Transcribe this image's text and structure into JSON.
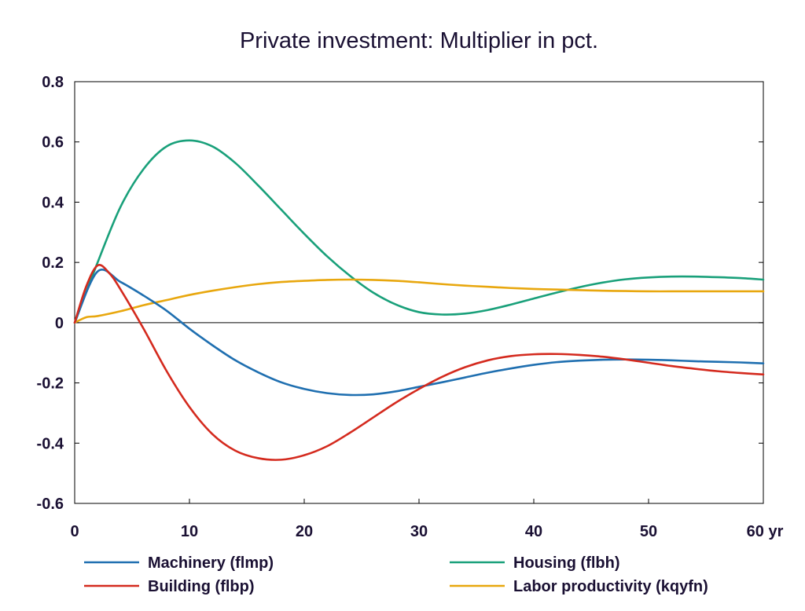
{
  "chart_data": {
    "type": "line",
    "title": "Private investment: Multiplier in pct.",
    "xlabel": "",
    "ylabel": "",
    "xlim": [
      0,
      60
    ],
    "ylim": [
      -0.6,
      0.8
    ],
    "x_ticks": [
      0,
      10,
      20,
      30,
      40,
      50,
      60
    ],
    "x_tick_labels": [
      "0",
      "10",
      "20",
      "30",
      "40",
      "50",
      "60 yr"
    ],
    "y_ticks": [
      -0.6,
      -0.4,
      -0.2,
      0,
      0.2,
      0.4,
      0.6,
      0.8
    ],
    "y_tick_labels": [
      "-0.6",
      "-0.4",
      "-0.2",
      "0",
      "0.2",
      "0.4",
      "0.6",
      "0.8"
    ],
    "grid": false,
    "zero_line": true,
    "legend_position": "bottom",
    "series": [
      {
        "name": "Machinery (flmp)",
        "color": "#1f6fb0",
        "x": [
          0,
          2,
          4,
          6,
          8,
          10,
          12,
          14,
          16,
          18,
          20,
          22,
          24,
          26,
          28,
          30,
          32,
          34,
          36,
          38,
          40,
          42,
          44,
          46,
          48,
          50,
          52,
          54,
          56,
          58,
          60
        ],
        "values": [
          0,
          0.17,
          0.135,
          0.09,
          0.04,
          -0.02,
          -0.075,
          -0.125,
          -0.165,
          -0.198,
          -0.22,
          -0.234,
          -0.24,
          -0.238,
          -0.228,
          -0.213,
          -0.198,
          -0.182,
          -0.166,
          -0.152,
          -0.14,
          -0.131,
          -0.126,
          -0.123,
          -0.122,
          -0.123,
          -0.125,
          -0.128,
          -0.13,
          -0.132,
          -0.135
        ]
      },
      {
        "name": "Housing (flbh)",
        "color": "#19a07a",
        "x": [
          0,
          2,
          4,
          6,
          8,
          10,
          12,
          14,
          16,
          18,
          20,
          22,
          24,
          26,
          28,
          30,
          32,
          34,
          36,
          38,
          40,
          42,
          44,
          46,
          48,
          50,
          52,
          54,
          56,
          58,
          60
        ],
        "values": [
          0,
          0.2,
          0.385,
          0.51,
          0.585,
          0.605,
          0.585,
          0.53,
          0.455,
          0.375,
          0.295,
          0.22,
          0.155,
          0.1,
          0.06,
          0.035,
          0.027,
          0.03,
          0.042,
          0.06,
          0.08,
          0.1,
          0.118,
          0.133,
          0.144,
          0.15,
          0.153,
          0.153,
          0.151,
          0.148,
          0.143
        ]
      },
      {
        "name": "Building (flbp)",
        "color": "#d42a1e",
        "x": [
          0,
          1,
          2,
          3,
          4,
          6,
          8,
          10,
          12,
          14,
          16,
          18,
          20,
          22,
          24,
          26,
          28,
          30,
          32,
          34,
          36,
          38,
          40,
          42,
          44,
          46,
          48,
          50,
          52,
          54,
          56,
          58,
          60
        ],
        "values": [
          0,
          0.12,
          0.19,
          0.165,
          0.11,
          -0.02,
          -0.16,
          -0.28,
          -0.37,
          -0.425,
          -0.45,
          -0.455,
          -0.44,
          -0.41,
          -0.365,
          -0.315,
          -0.265,
          -0.22,
          -0.18,
          -0.148,
          -0.125,
          -0.111,
          -0.105,
          -0.104,
          -0.107,
          -0.113,
          -0.122,
          -0.133,
          -0.144,
          -0.153,
          -0.161,
          -0.167,
          -0.172
        ]
      },
      {
        "name": "Labor productivity (kqyfn)",
        "color": "#e8a70e",
        "x": [
          0,
          1,
          2,
          4,
          6,
          8,
          10,
          12,
          14,
          16,
          18,
          20,
          22,
          24,
          26,
          28,
          30,
          32,
          34,
          36,
          38,
          40,
          42,
          44,
          46,
          48,
          50,
          52,
          54,
          56,
          58,
          60
        ],
        "values": [
          0,
          0.018,
          0.022,
          0.038,
          0.058,
          0.075,
          0.092,
          0.106,
          0.118,
          0.128,
          0.135,
          0.139,
          0.142,
          0.143,
          0.142,
          0.139,
          0.134,
          0.128,
          0.123,
          0.119,
          0.115,
          0.112,
          0.11,
          0.108,
          0.106,
          0.105,
          0.104,
          0.104,
          0.104,
          0.104,
          0.104,
          0.104
        ]
      }
    ]
  }
}
